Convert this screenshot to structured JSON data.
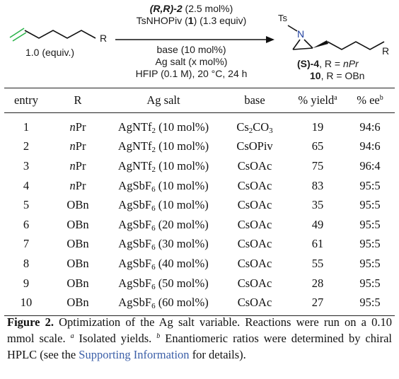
{
  "scheme": {
    "reactant_R": "R",
    "reactant_equiv": "1.0 (equiv.)",
    "catalyst_bold": "(R,R)-2",
    "catalyst_loading": "(2.5 mol%)",
    "reagent_name": "TsNHOPiv",
    "reagent_label": "1",
    "reagent_equiv": "(1.3 equiv)",
    "cond_base": "base (10 mol%)",
    "cond_salt": "Ag salt (x mol%)",
    "cond_solvent": "HFIP (0.1 M), 20 °C, 24 h",
    "product_Ts": "Ts",
    "product_N": "N",
    "product_R": "R",
    "product_line1_label": "(S)-4",
    "product_line1_text": ", R = ",
    "product_line1_R": "nPr",
    "product_line2_label": "10",
    "product_line2_text": ", R = OBn"
  },
  "table": {
    "headers": {
      "entry": "entry",
      "r": "R",
      "salt": "Ag salt",
      "base": "base",
      "yield": "% yield",
      "yield_note": "a",
      "ee": "% ee",
      "ee_note": "b"
    },
    "rows": [
      {
        "entry": "1",
        "r_italic": "n",
        "r_text": "Pr",
        "salt_main": "AgNTf",
        "salt_sub": "2",
        "salt_load": " (10 mol%)",
        "base_main": "Cs",
        "base_sub": "2",
        "base_tail": "CO",
        "base_sub2": "3",
        "yield": "19",
        "ee": "94:6"
      },
      {
        "entry": "2",
        "r_italic": "n",
        "r_text": "Pr",
        "salt_main": "AgNTf",
        "salt_sub": "2",
        "salt_load": " (10 mol%)",
        "base_main": "CsOPiv",
        "base_sub": "",
        "base_tail": "",
        "base_sub2": "",
        "yield": "65",
        "ee": "94:6"
      },
      {
        "entry": "3",
        "r_italic": "n",
        "r_text": "Pr",
        "salt_main": "AgNTf",
        "salt_sub": "2",
        "salt_load": " (10 mol%)",
        "base_main": "CsOAc",
        "base_sub": "",
        "base_tail": "",
        "base_sub2": "",
        "yield": "75",
        "ee": "96:4"
      },
      {
        "entry": "4",
        "r_italic": "n",
        "r_text": "Pr",
        "salt_main": "AgSbF",
        "salt_sub": "6",
        "salt_load": " (10 mol%)",
        "base_main": "CsOAc",
        "base_sub": "",
        "base_tail": "",
        "base_sub2": "",
        "yield": "83",
        "ee": "95:5"
      },
      {
        "entry": "5",
        "r_italic": "",
        "r_text": "OBn",
        "salt_main": "AgSbF",
        "salt_sub": "6",
        "salt_load": " (10 mol%)",
        "base_main": "CsOAc",
        "base_sub": "",
        "base_tail": "",
        "base_sub2": "",
        "yield": "35",
        "ee": "95:5"
      },
      {
        "entry": "6",
        "r_italic": "",
        "r_text": "OBn",
        "salt_main": "AgSbF",
        "salt_sub": "6",
        "salt_load": " (20 mol%)",
        "base_main": "CsOAc",
        "base_sub": "",
        "base_tail": "",
        "base_sub2": "",
        "yield": "49",
        "ee": "95:5"
      },
      {
        "entry": "7",
        "r_italic": "",
        "r_text": "OBn",
        "salt_main": "AgSbF",
        "salt_sub": "6",
        "salt_load": " (30 mol%)",
        "base_main": "CsOAc",
        "base_sub": "",
        "base_tail": "",
        "base_sub2": "",
        "yield": "61",
        "ee": "95:5"
      },
      {
        "entry": "8",
        "r_italic": "",
        "r_text": "OBn",
        "salt_main": "AgSbF",
        "salt_sub": "6",
        "salt_load": " (40 mol%)",
        "base_main": "CsOAc",
        "base_sub": "",
        "base_tail": "",
        "base_sub2": "",
        "yield": "55",
        "ee": "95:5"
      },
      {
        "entry": "9",
        "r_italic": "",
        "r_text": "OBn",
        "salt_main": "AgSbF",
        "salt_sub": "6",
        "salt_load": " (50 mol%)",
        "base_main": "CsOAc",
        "base_sub": "",
        "base_tail": "",
        "base_sub2": "",
        "yield": "28",
        "ee": "95:5"
      },
      {
        "entry": "10",
        "r_italic": "",
        "r_text": "OBn",
        "salt_main": "AgSbF",
        "salt_sub": "6",
        "salt_load": " (60 mol%)",
        "base_main": "CsOAc",
        "base_sub": "",
        "base_tail": "",
        "base_sub2": "",
        "yield": "27",
        "ee": "95:5"
      }
    ]
  },
  "caption": {
    "label": "Figure 2.",
    "text1": " Optimization of the Ag salt variable. Reactions were run on a 0.10 mmol scale. ",
    "note_a": "a",
    "text2": " Isolated yields. ",
    "note_b": "b",
    "text3": " Enantiomeric ratios were determined by chiral HPLC (see the ",
    "link": "Supporting Information",
    "text4": " for details)."
  },
  "colors": {
    "alkene": "#2bb34a",
    "link": "#3b5fa8",
    "ink": "#111111",
    "aziridine_N": "#1f3f9e"
  }
}
